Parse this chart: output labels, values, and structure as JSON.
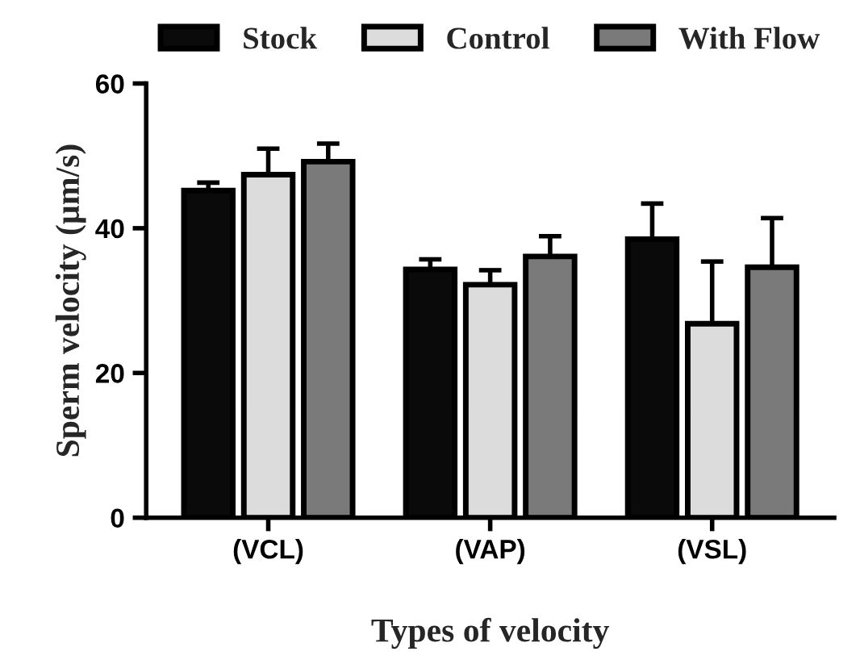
{
  "chart_data": {
    "type": "bar",
    "xlabel": "Types of velocity",
    "ylabel": "Sperm velocity (µm/s)",
    "categories": [
      "(VCL)",
      "(VAP)",
      "(VSL)"
    ],
    "series": [
      {
        "name": "Stock",
        "color": "#0a0a0a",
        "values": [
          45.2,
          34.3,
          38.5
        ],
        "errors": [
          [
            45.2,
            46.3
          ],
          [
            34.3,
            35.7
          ],
          [
            38.5,
            43.4
          ]
        ]
      },
      {
        "name": "Control",
        "color": "#dcdcdc",
        "values": [
          47.4,
          32.2,
          26.8
        ],
        "errors": [
          [
            47.4,
            51.0
          ],
          [
            32.2,
            34.2
          ],
          [
            26.8,
            35.4
          ]
        ]
      },
      {
        "name": "With Flow",
        "color": "#7a7a7a",
        "values": [
          49.2,
          36.1,
          34.6
        ],
        "errors": [
          [
            49.2,
            51.7
          ],
          [
            36.1,
            38.9
          ],
          [
            34.6,
            41.4
          ]
        ]
      }
    ],
    "ylim": [
      0,
      60
    ],
    "yticks": [
      0,
      20,
      40,
      60
    ],
    "grid": false,
    "legend": "top"
  }
}
